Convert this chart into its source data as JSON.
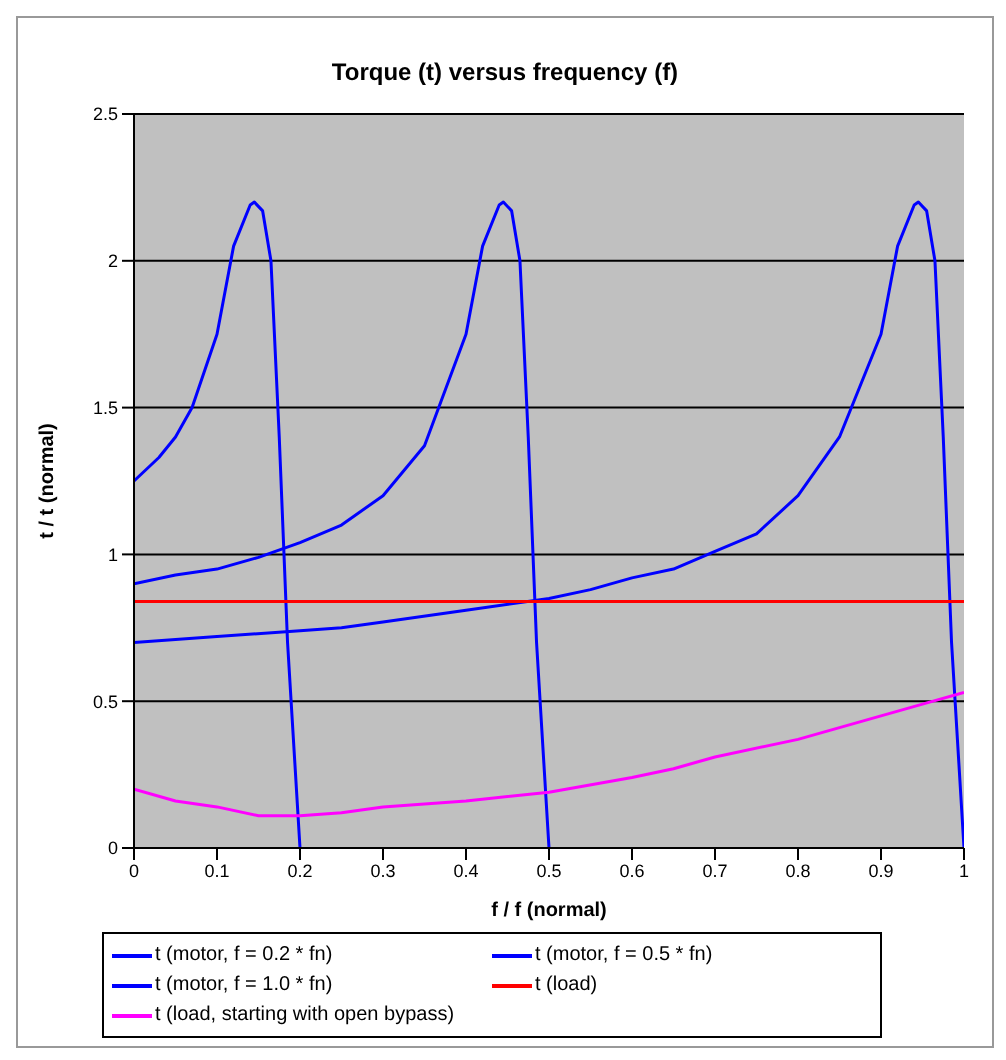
{
  "chart_data": {
    "type": "line",
    "title": "Torque (t) versus frequency (f)",
    "xlabel": "f / f (normal)",
    "ylabel": "t / t (normal)",
    "xlim": [
      0,
      1
    ],
    "xticks": [
      0,
      0.1,
      0.2,
      0.3,
      0.4,
      0.5,
      0.6,
      0.7,
      0.8,
      0.9,
      1
    ],
    "ylim": [
      0,
      2.5
    ],
    "yticks": [
      0,
      0.5,
      1,
      1.5,
      2,
      2.5
    ],
    "grid": "y",
    "legend": "bottom",
    "marker": "none",
    "line_style": "solid",
    "series": [
      {
        "name": "t (motor, f = 0.2 * fn)",
        "color": "#0000ff",
        "x": [
          0,
          0.03,
          0.05,
          0.07,
          0.1,
          0.12,
          0.14,
          0.145,
          0.155,
          0.165,
          0.175,
          0.185,
          0.2
        ],
        "values": [
          1.25,
          1.33,
          1.4,
          1.5,
          1.75,
          2.05,
          2.19,
          2.2,
          2.17,
          2.0,
          1.4,
          0.7,
          0
        ]
      },
      {
        "name": "t (motor, f = 0.5 * fn)",
        "color": "#0000ff",
        "x": [
          0,
          0.05,
          0.1,
          0.15,
          0.2,
          0.25,
          0.3,
          0.35,
          0.4,
          0.42,
          0.44,
          0.445,
          0.455,
          0.465,
          0.475,
          0.485,
          0.5
        ],
        "values": [
          0.9,
          0.93,
          0.95,
          0.99,
          1.04,
          1.1,
          1.2,
          1.37,
          1.75,
          2.05,
          2.19,
          2.2,
          2.17,
          2.0,
          1.4,
          0.7,
          0
        ]
      },
      {
        "name": "t (motor, f = 1.0 * fn)",
        "color": "#0000ff",
        "x": [
          0,
          0.1,
          0.2,
          0.25,
          0.3,
          0.4,
          0.5,
          0.55,
          0.6,
          0.65,
          0.7,
          0.75,
          0.8,
          0.85,
          0.9,
          0.92,
          0.94,
          0.945,
          0.955,
          0.965,
          0.975,
          0.985,
          1
        ],
        "values": [
          0.7,
          0.72,
          0.74,
          0.75,
          0.77,
          0.81,
          0.85,
          0.88,
          0.92,
          0.95,
          1.01,
          1.07,
          1.2,
          1.4,
          1.75,
          2.05,
          2.19,
          2.2,
          2.17,
          2.0,
          1.4,
          0.7,
          0
        ]
      },
      {
        "name": "t (load)",
        "color": "#ff0000",
        "x": [
          0,
          1
        ],
        "values": [
          0.84,
          0.84
        ]
      },
      {
        "name": "t (load, starting with open bypass)",
        "color": "#ff00ff",
        "x": [
          0,
          0.05,
          0.1,
          0.15,
          0.2,
          0.25,
          0.3,
          0.4,
          0.5,
          0.6,
          0.65,
          0.7,
          0.8,
          0.9,
          0.95,
          1
        ],
        "values": [
          0.2,
          0.16,
          0.14,
          0.11,
          0.11,
          0.12,
          0.14,
          0.16,
          0.19,
          0.24,
          0.27,
          0.31,
          0.37,
          0.45,
          0.49,
          0.53
        ]
      }
    ]
  }
}
